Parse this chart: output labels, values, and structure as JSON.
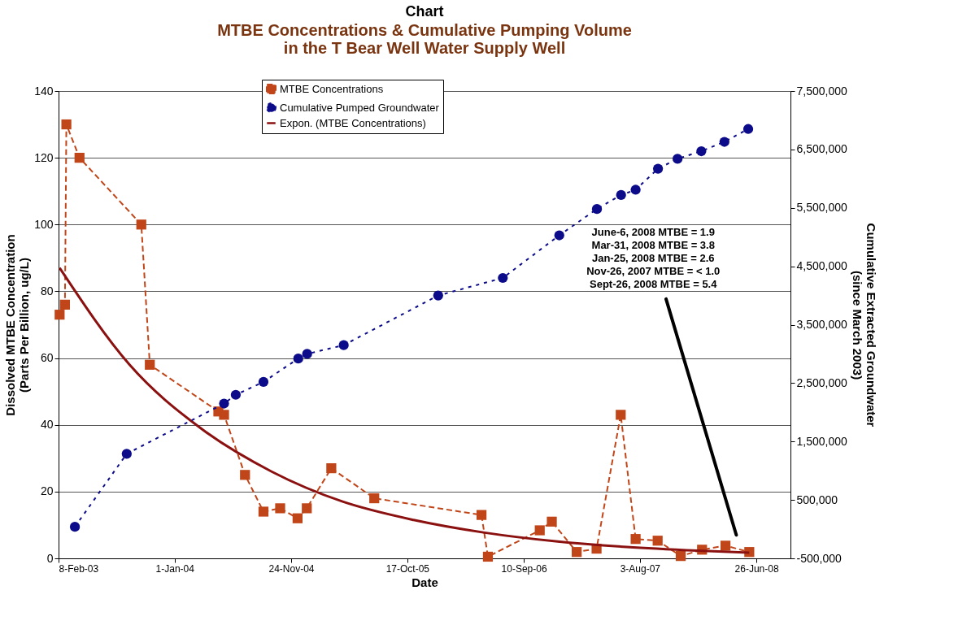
{
  "chart_data": {
    "type": "line",
    "title": "Chart",
    "subtitle": "MTBE Concentrations & Cumulative Pumping Volume\nin the T Bear Well Water Supply Well",
    "xlabel": "Date",
    "ylabel": "Dissolved MTBE Concentration\n(Parts Per Billion, ug/L)",
    "y2label": "Cumulative Extracted Groundwater\n(since March 2003)",
    "xlim": [
      "2003-02-08",
      "2008-09-30"
    ],
    "xticks": [
      {
        "value": "2003-02-08",
        "label": "8-Feb-03"
      },
      {
        "value": "2004-01-01",
        "label": "1-Jan-04"
      },
      {
        "value": "2004-11-24",
        "label": "24-Nov-04"
      },
      {
        "value": "2005-10-17",
        "label": "17-Oct-05"
      },
      {
        "value": "2006-09-10",
        "label": "10-Sep-06"
      },
      {
        "value": "2007-08-03",
        "label": "3-Aug-07"
      },
      {
        "value": "2008-06-26",
        "label": "26-Jun-08"
      }
    ],
    "ylim": [
      0,
      140
    ],
    "yticks": [
      0,
      20,
      40,
      60,
      80,
      100,
      120,
      140
    ],
    "y2lim": [
      -500000,
      7500000
    ],
    "y2ticks": [
      {
        "value": -500000,
        "label": "-500,000"
      },
      {
        "value": 500000,
        "label": "500,000"
      },
      {
        "value": 1500000,
        "label": "1,500,000"
      },
      {
        "value": 2500000,
        "label": "2,500,000"
      },
      {
        "value": 3500000,
        "label": "3,500,000"
      },
      {
        "value": 4500000,
        "label": "4,500,000"
      },
      {
        "value": 5500000,
        "label": "5,500,000"
      },
      {
        "value": 6500000,
        "label": "6,500,000"
      },
      {
        "value": 7500000,
        "label": "7,500,000"
      }
    ],
    "grid": "y",
    "legend": "top",
    "series": [
      {
        "name": "MTBE Concentrations",
        "color": "#c0461a",
        "marker": "square",
        "line_style": "dashed",
        "x": [
          "2003-02-11",
          "2003-02-26",
          "2003-03-02",
          "2003-04-08",
          "2003-09-29",
          "2003-10-23",
          "2004-05-03",
          "2004-05-19",
          "2004-07-17",
          "2004-09-07",
          "2004-10-24",
          "2004-12-12",
          "2005-01-07",
          "2005-03-17",
          "2005-07-16",
          "2006-05-14",
          "2006-06-01",
          "2006-10-25",
          "2006-11-28",
          "2007-02-06",
          "2007-04-03",
          "2007-06-10",
          "2007-07-22",
          "2007-09-22",
          "2007-11-26",
          "2008-01-25",
          "2008-03-31",
          "2008-06-06"
        ],
        "values": [
          73,
          76,
          130,
          120,
          100,
          58,
          44,
          43,
          25,
          14,
          15,
          12,
          15,
          27,
          18,
          13,
          0.5,
          8.4,
          11,
          1.9,
          2.9,
          43,
          5.8,
          5.3,
          0.7,
          2.6,
          3.8,
          1.9
        ]
      },
      {
        "name": "Cumulative Pumped Groundwater",
        "color": "#0c0c8a",
        "marker": "circle",
        "line_style": "dotted",
        "axis": "y2",
        "x": [
          "2003-03-26",
          "2003-08-19",
          "2004-05-19",
          "2004-06-21",
          "2004-09-07",
          "2004-12-14",
          "2005-01-08",
          "2005-04-21",
          "2006-01-12",
          "2006-07-13",
          "2006-12-19",
          "2007-04-04",
          "2007-06-11",
          "2007-07-22",
          "2007-09-23",
          "2007-11-17",
          "2008-01-23",
          "2008-03-28",
          "2008-06-03"
        ],
        "values": [
          40000,
          1290000,
          2150000,
          2300000,
          2520000,
          2920000,
          3000000,
          3150000,
          4000000,
          4300000,
          5030000,
          5480000,
          5720000,
          5810000,
          6170000,
          6340000,
          6470000,
          6630000,
          6850000
        ]
      },
      {
        "name": "Expon. (MTBE Concentrations)",
        "color": "#8b1010",
        "marker": "none",
        "line_style": "solid",
        "x": [
          "2003-02-11",
          "2003-08-27",
          "2004-03-14",
          "2004-09-30",
          "2005-04-18",
          "2005-11-04",
          "2006-05-23",
          "2006-12-09",
          "2007-06-27",
          "2008-01-13",
          "2008-06-06"
        ],
        "values": [
          87,
          58,
          39,
          26,
          17,
          11.5,
          7.7,
          5.1,
          3.4,
          2.3,
          1.7
        ]
      }
    ],
    "annotations": [
      "June-6, 2008 MTBE = 1.9",
      "Mar-31, 2008 MTBE = 3.8",
      "Jan-25, 2008 MTBE = 2.6",
      "Nov-26, 2007 MTBE = < 1.0",
      "Sept-26, 2008 MTBE = 5.4"
    ]
  }
}
